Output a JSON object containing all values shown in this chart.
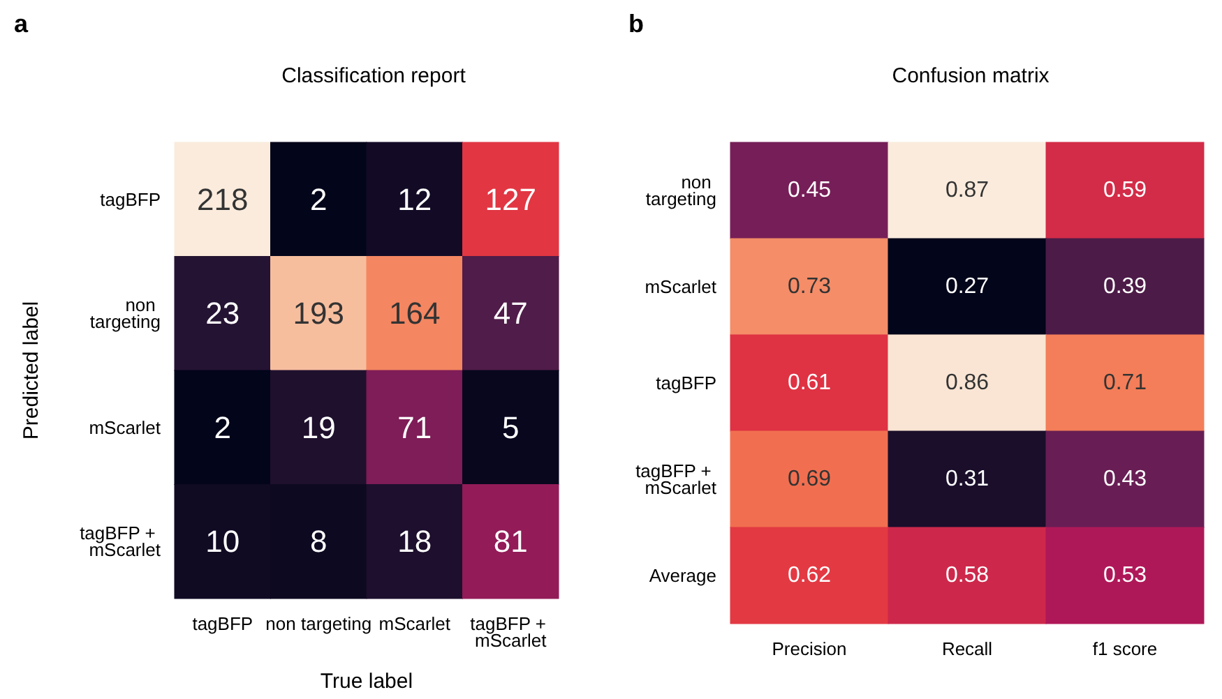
{
  "chart_data": [
    {
      "type": "heatmap",
      "title": "Classification report",
      "xlabel": "True label",
      "ylabel": "Predicted label",
      "annotations": [
        "a"
      ],
      "data_labels": true,
      "categories": [
        "tagBFP",
        "non targeting",
        "mScarlet",
        "tagBFP + mScarlet"
      ],
      "y_categories": [
        "tagBFP",
        "non targeting",
        "mScarlet",
        "tagBFP + mScarlet"
      ],
      "cells": [
        [
          218,
          2,
          12,
          127
        ],
        [
          23,
          193,
          164,
          47
        ],
        [
          2,
          19,
          71,
          5
        ],
        [
          10,
          8,
          18,
          81
        ]
      ]
    },
    {
      "type": "heatmap",
      "title": "Confusion matrix",
      "annotations": [
        "b"
      ],
      "data_labels": true,
      "categories": [
        "Precision",
        "Recall",
        "f1 score"
      ],
      "y_categories": [
        "non targeting",
        "mScarlet",
        "tagBFP",
        "tagBFP + mScarlet",
        "Average"
      ],
      "cells": [
        [
          0.45,
          0.87,
          0.59
        ],
        [
          0.73,
          0.27,
          0.39
        ],
        [
          0.61,
          0.86,
          0.71
        ],
        [
          0.69,
          0.31,
          0.43
        ],
        [
          0.62,
          0.58,
          0.53
        ]
      ]
    }
  ]
}
